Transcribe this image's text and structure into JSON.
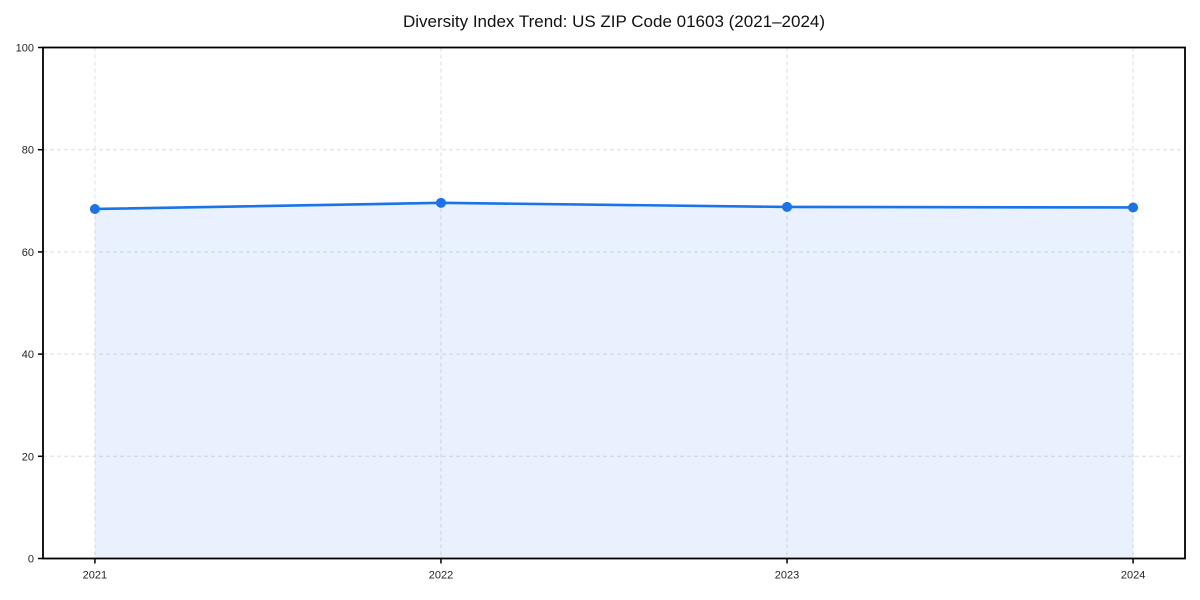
{
  "page": {
    "background": "#ffffff"
  },
  "chart_data": {
    "type": "area",
    "title": "Diversity Index Trend: US ZIP Code 01603 (2021–2024)",
    "x": [
      2021,
      2022,
      2023,
      2024
    ],
    "x_labels": [
      "2021",
      "2022",
      "2023",
      "2024"
    ],
    "values": [
      68.4,
      69.6,
      68.8,
      68.7
    ],
    "xlabel": "",
    "ylabel": "",
    "ylim": [
      0,
      100
    ],
    "yticks": [
      0,
      20,
      40,
      60,
      80,
      100
    ],
    "x_range": [
      2020.85,
      2024.15
    ],
    "grid": "dashed",
    "legend": "none",
    "marker": "circle",
    "colors": {
      "line": "#1a73e8",
      "marker": "#1a73e8",
      "fill": "rgba(26,115,232,0.10)",
      "gridline": "#dedede",
      "axis": "#000000",
      "tick_label": "#262626",
      "title": "#111111"
    }
  }
}
